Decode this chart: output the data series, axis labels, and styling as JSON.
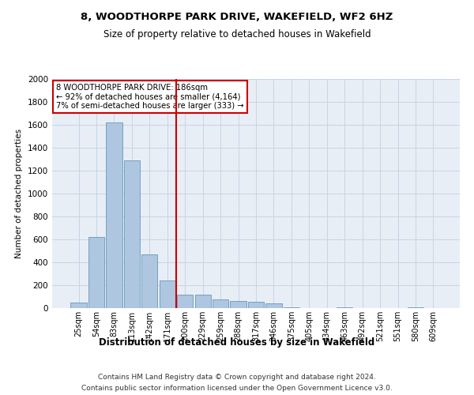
{
  "title": "8, WOODTHORPE PARK DRIVE, WAKEFIELD, WF2 6HZ",
  "subtitle": "Size of property relative to detached houses in Wakefield",
  "xlabel": "Distribution of detached houses by size in Wakefield",
  "ylabel": "Number of detached properties",
  "footnote1": "Contains HM Land Registry data © Crown copyright and database right 2024.",
  "footnote2": "Contains public sector information licensed under the Open Government Licence v3.0.",
  "annotation_line1": "8 WOODTHORPE PARK DRIVE: 186sqm",
  "annotation_line2": "← 92% of detached houses are smaller (4,164)",
  "annotation_line3": "7% of semi-detached houses are larger (333) →",
  "bar_color": "#aec6df",
  "bar_edge_color": "#6699bb",
  "grid_color": "#c8d4e4",
  "vline_color": "#cc0000",
  "background_color": "#e8eef6",
  "annotation_box_color": "#ffffff",
  "annotation_box_edge": "#cc0000",
  "bins": [
    "25sqm",
    "54sqm",
    "83sqm",
    "113sqm",
    "142sqm",
    "171sqm",
    "200sqm",
    "229sqm",
    "259sqm",
    "288sqm",
    "317sqm",
    "346sqm",
    "375sqm",
    "405sqm",
    "434sqm",
    "463sqm",
    "492sqm",
    "521sqm",
    "551sqm",
    "580sqm",
    "609sqm"
  ],
  "counts": [
    50,
    620,
    1620,
    1290,
    470,
    240,
    115,
    115,
    75,
    60,
    55,
    40,
    8,
    0,
    0,
    8,
    0,
    0,
    0,
    8,
    0
  ],
  "vline_position": 5.5,
  "ylim": [
    0,
    2000
  ],
  "yticks": [
    0,
    200,
    400,
    600,
    800,
    1000,
    1200,
    1400,
    1600,
    1800,
    2000
  ]
}
